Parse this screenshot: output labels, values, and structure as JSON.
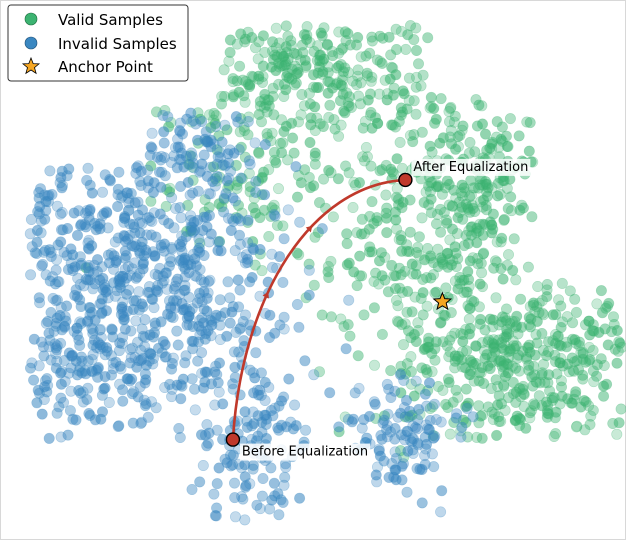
{
  "chart_data": {
    "type": "scatter",
    "title": "",
    "xlabel": "",
    "ylabel": "",
    "grid": false,
    "axes_visible": false,
    "legend_position": "top-left",
    "series": [
      {
        "name": "Valid Samples",
        "color": "#3cb371",
        "marker": "circle",
        "description_regions": [
          "upper-center",
          "right",
          "lower-right"
        ]
      },
      {
        "name": "Invalid Samples",
        "color": "#3a87c1",
        "marker": "circle",
        "description_regions": [
          "left",
          "center",
          "bottom-center"
        ]
      },
      {
        "name": "Anchor Point",
        "color": "#f5a623",
        "marker": "star",
        "points": [
          [
            0.71,
            0.44
          ]
        ]
      }
    ],
    "trajectory": {
      "color": "#c0392b",
      "start": {
        "label": "Before Equalization",
        "point": [
          0.37,
          0.18
        ]
      },
      "end": {
        "label": "After Equalization",
        "point": [
          0.65,
          0.67
        ]
      }
    }
  }
}
